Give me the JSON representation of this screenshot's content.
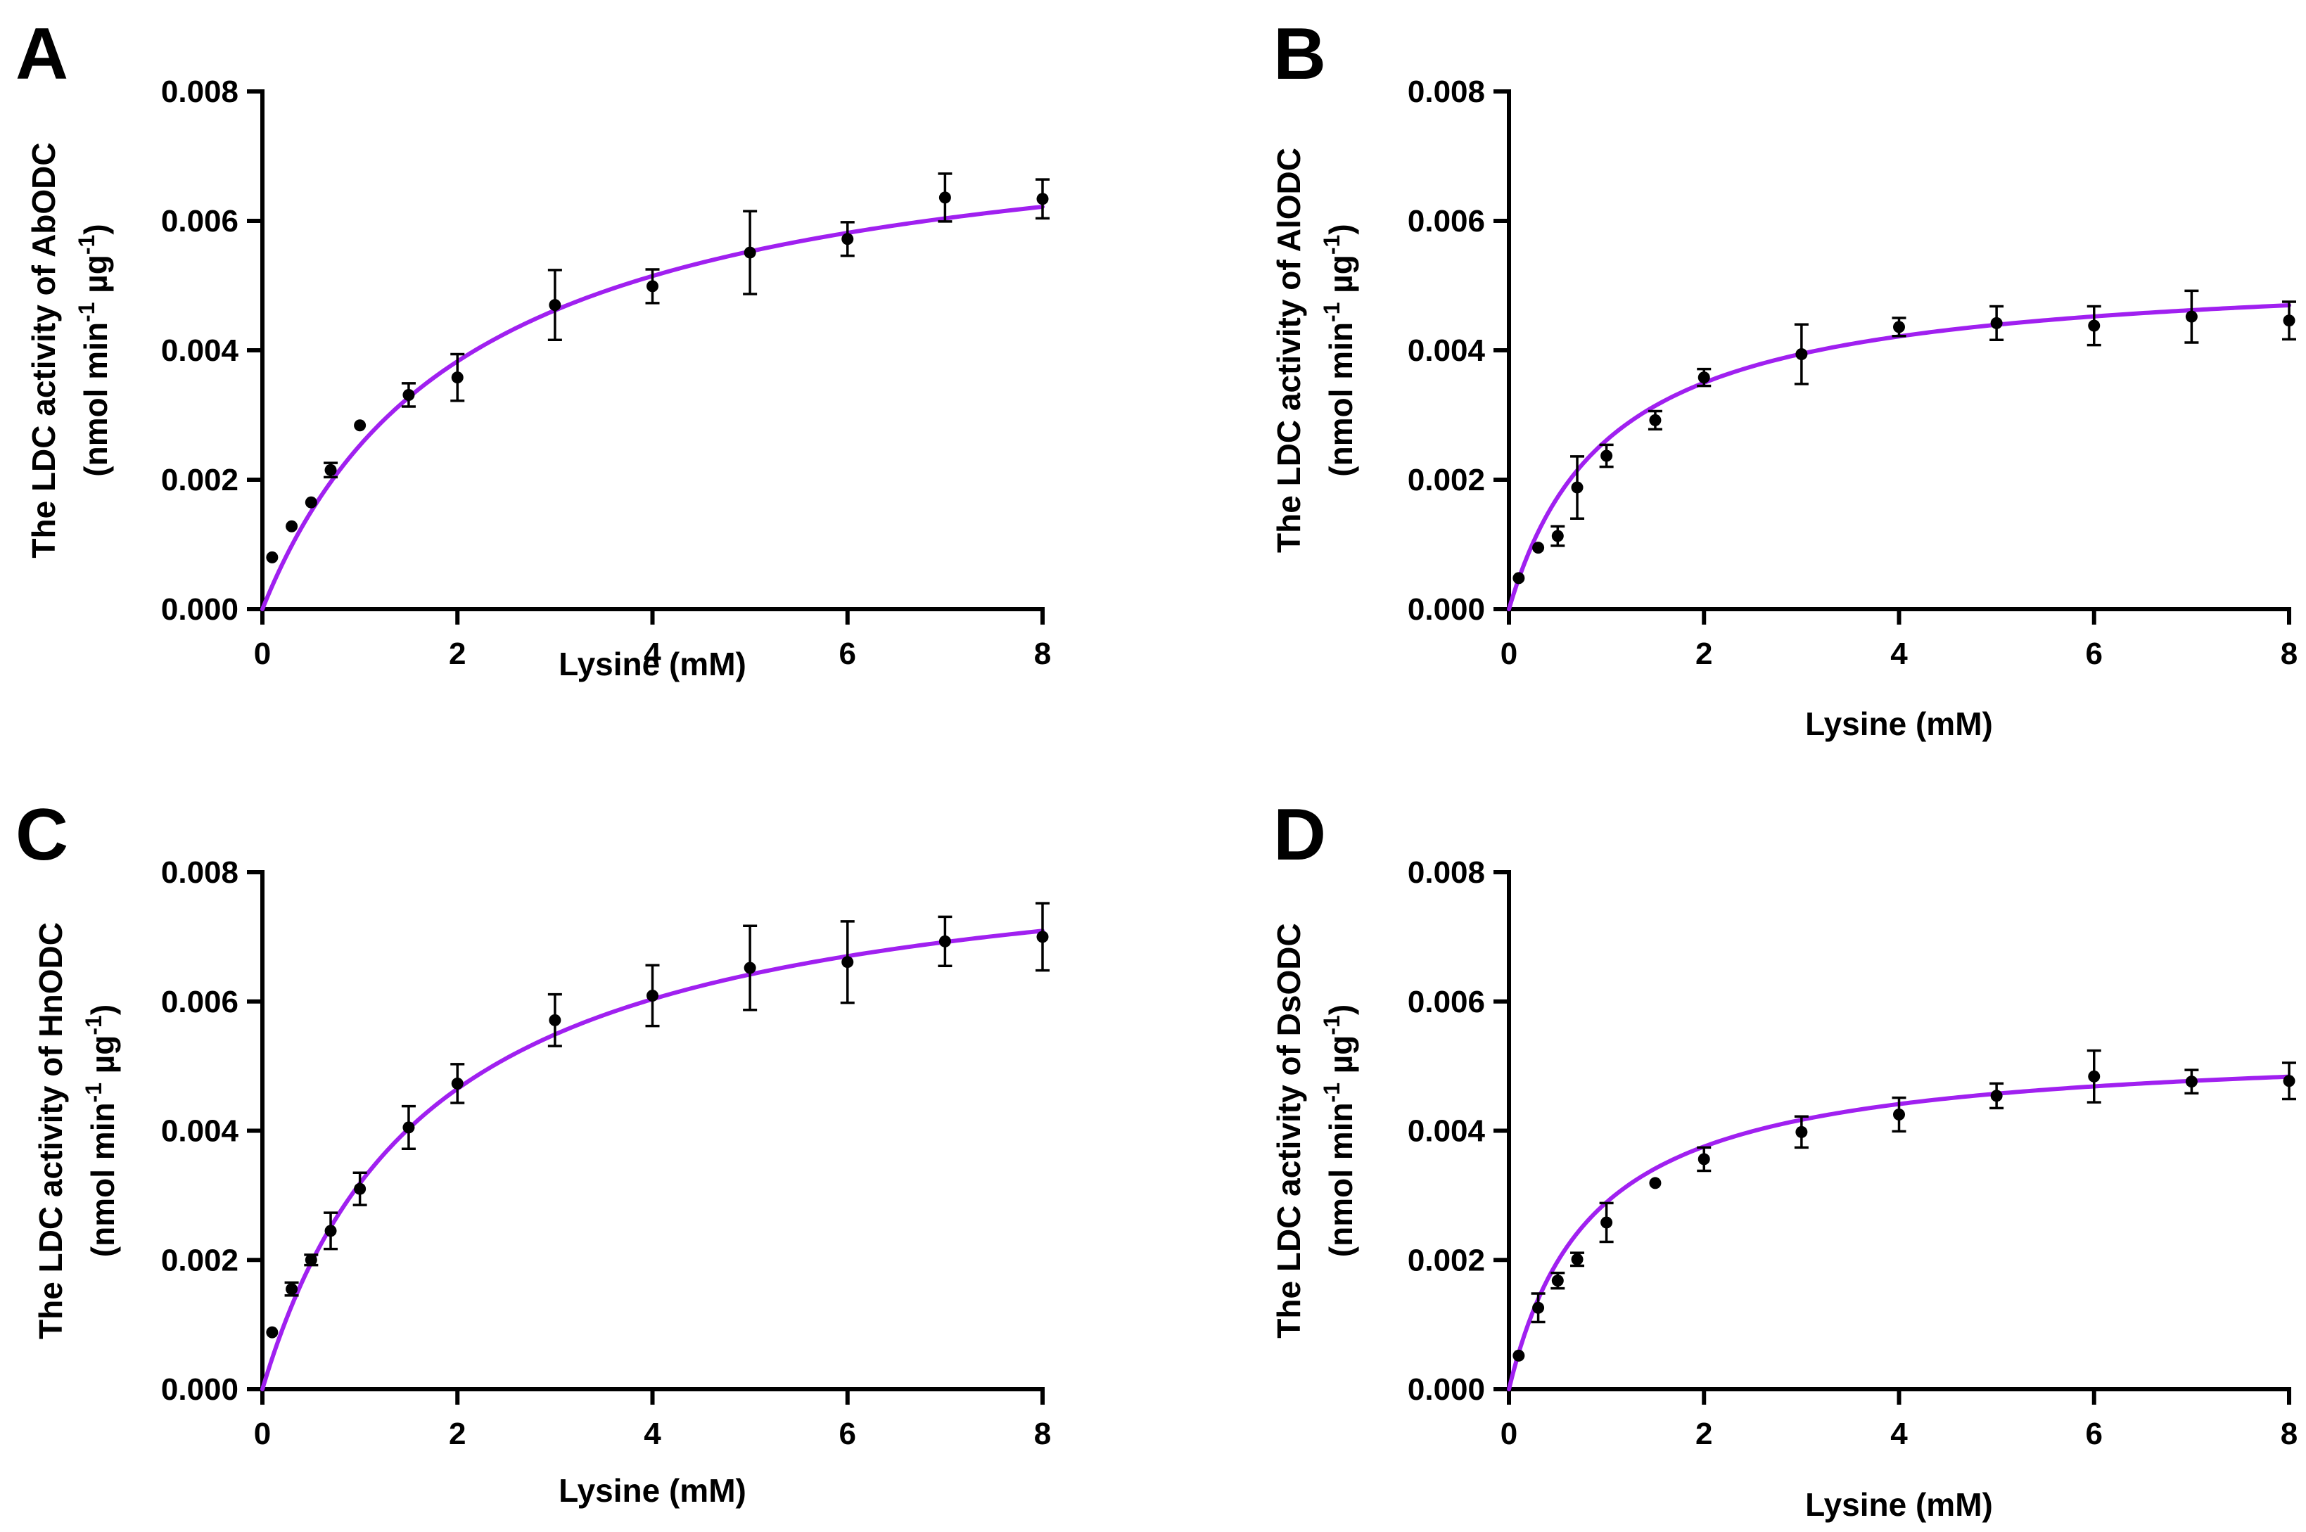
{
  "chart_data": [
    {
      "type": "scatter",
      "panel": "A",
      "title": "",
      "xlabel": "Lysine (mM)",
      "ylabel_line1": "The LDC activity of AbODC",
      "ylabel_line2_main": "(nmol min",
      "ylabel_line2_exp1": "-1",
      "ylabel_line2_mid": " µg",
      "ylabel_line2_exp2": "-1",
      "ylabel_line2_end": ")",
      "xlim": [
        0,
        8
      ],
      "ylim": [
        0,
        0.008
      ],
      "xticks": [
        "0",
        "2",
        "4",
        "6",
        "8"
      ],
      "yticks": [
        "0.000",
        "0.002",
        "0.004",
        "0.006",
        "0.008"
      ],
      "fit_color": "#a020f0",
      "fit": {
        "model": "Michaelis-Menten",
        "vmax": 0.00785,
        "km": 2.1
      },
      "x": [
        0.1,
        0.3,
        0.5,
        0.7,
        1,
        1.5,
        2,
        3,
        4,
        5,
        6,
        7,
        8
      ],
      "y": [
        0.0008,
        0.00128,
        0.00165,
        0.00215,
        0.00284,
        0.00331,
        0.00358,
        0.0047,
        0.00499,
        0.00551,
        0.00572,
        0.00636,
        0.00634
      ],
      "err": [
        2e-05,
        3e-05,
        3e-05,
        0.00011,
        2e-05,
        0.00018,
        0.00036,
        0.00054,
        0.00026,
        0.00064,
        0.00026,
        0.00037,
        0.0003
      ]
    },
    {
      "type": "scatter",
      "panel": "B",
      "title": "",
      "xlabel": "Lysine (mM)",
      "ylabel_line1": "The LDC activity of AlODC",
      "ylabel_line2_main": "(nmol min",
      "ylabel_line2_exp1": "-1",
      "ylabel_line2_mid": " µg",
      "ylabel_line2_exp2": "-1",
      "ylabel_line2_end": ")",
      "xlim": [
        0,
        8
      ],
      "ylim": [
        0,
        0.008
      ],
      "xticks": [
        "0",
        "2",
        "4",
        "6",
        "8"
      ],
      "yticks": [
        "0.000",
        "0.002",
        "0.004",
        "0.006",
        "0.008"
      ],
      "fit_color": "#a020f0",
      "fit": {
        "model": "Michaelis-Menten",
        "vmax": 0.0053,
        "km": 1.03
      },
      "x": [
        0.1,
        0.3,
        0.5,
        0.7,
        1,
        1.5,
        2,
        3,
        4,
        5,
        6,
        7,
        8
      ],
      "y": [
        0.00048,
        0.00095,
        0.00113,
        0.00188,
        0.00237,
        0.00292,
        0.00358,
        0.00394,
        0.00436,
        0.00442,
        0.00438,
        0.00452,
        0.00446
      ],
      "err": [
        4e-05,
        5e-05,
        0.00015,
        0.00048,
        0.00017,
        0.00014,
        0.00013,
        0.00046,
        0.00014,
        0.00026,
        0.0003,
        0.0004,
        0.00029
      ]
    },
    {
      "type": "scatter",
      "panel": "C",
      "title": "",
      "xlabel": "Lysine (mM)",
      "ylabel_line1": "The LDC activity of HnODC",
      "ylabel_line2_main": "(nmol min",
      "ylabel_line2_exp1": "-1",
      "ylabel_line2_mid": " µg",
      "ylabel_line2_exp2": "-1",
      "ylabel_line2_end": ")",
      "xlim": [
        0,
        8
      ],
      "ylim": [
        0,
        0.008
      ],
      "xticks": [
        "0",
        "2",
        "4",
        "6",
        "8"
      ],
      "yticks": [
        "0.000",
        "0.002",
        "0.004",
        "0.006",
        "0.008"
      ],
      "fit_color": "#a020f0",
      "fit": {
        "model": "Michaelis-Menten",
        "vmax": 0.0086,
        "km": 1.7
      },
      "x": [
        0.1,
        0.3,
        0.5,
        0.7,
        1,
        1.5,
        2,
        3,
        4,
        5,
        6,
        7,
        8
      ],
      "y": [
        0.00088,
        0.00155,
        0.002,
        0.00245,
        0.0031,
        0.00405,
        0.00473,
        0.00571,
        0.00609,
        0.00652,
        0.00661,
        0.00693,
        0.007
      ],
      "err": [
        3e-05,
        0.0001,
        8e-05,
        0.00028,
        0.00025,
        0.00033,
        0.0003,
        0.0004,
        0.00047,
        0.00065,
        0.00063,
        0.00038,
        0.00052
      ]
    },
    {
      "type": "scatter",
      "panel": "D",
      "title": "",
      "xlabel": "Lysine (mM)",
      "ylabel_line1": "The LDC activity of DsODC",
      "ylabel_line2_main": "(nmol min",
      "ylabel_line2_exp1": "-1",
      "ylabel_line2_mid": " µg",
      "ylabel_line2_exp2": "-1",
      "ylabel_line2_end": ")",
      "xlim": [
        0,
        8
      ],
      "ylim": [
        0,
        0.008
      ],
      "xticks": [
        "0",
        "2",
        "4",
        "6",
        "8"
      ],
      "yticks": [
        "0.000",
        "0.002",
        "0.004",
        "0.006",
        "0.008"
      ],
      "fit_color": "#a020f0",
      "fit": {
        "model": "Michaelis-Menten",
        "vmax": 0.00535,
        "km": 0.85
      },
      "x": [
        0.1,
        0.3,
        0.5,
        0.7,
        1,
        1.5,
        2,
        3,
        4,
        5,
        6,
        7,
        8
      ],
      "y": [
        0.00052,
        0.00126,
        0.00168,
        0.00201,
        0.00258,
        0.00319,
        0.00356,
        0.00398,
        0.00425,
        0.00454,
        0.00484,
        0.00476,
        0.00477
      ],
      "err": [
        4e-05,
        0.00022,
        0.00012,
        0.0001,
        0.0003,
        3e-05,
        0.00018,
        0.00024,
        0.00026,
        0.00019,
        0.0004,
        0.00018,
        0.00028
      ]
    }
  ]
}
